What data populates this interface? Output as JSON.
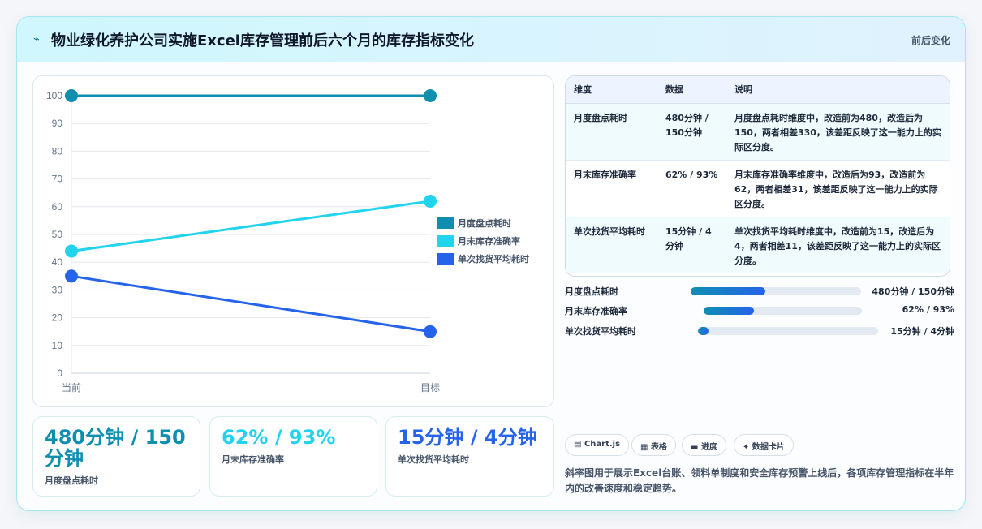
{
  "header": {
    "icon": "lightning-icon",
    "title": "物业绿化养护公司实施Excel库存管理前后六个月的库存指标变化",
    "subtitle": "前后变化"
  },
  "colors": {
    "series1": "#0e8fb0",
    "series2": "#22d3ee",
    "series3": "#2563eb"
  },
  "chart_data": {
    "type": "line",
    "categories": [
      "当前",
      "目标"
    ],
    "series": [
      {
        "name": "月度盘点耗时",
        "values": [
          100,
          100
        ]
      },
      {
        "name": "月末库存准确率",
        "values": [
          44,
          62
        ]
      },
      {
        "name": "单次找货平均耗时",
        "values": [
          35,
          15
        ]
      }
    ],
    "ylim": [
      0,
      100
    ],
    "yticks": [
      0,
      10,
      20,
      30,
      40,
      50,
      60,
      70,
      80,
      90,
      100
    ],
    "legend": "right",
    "grid": true
  },
  "kpis": [
    {
      "value": "480分钟 / 150分钟",
      "label": "月度盘点耗时"
    },
    {
      "value": "62% / 93%",
      "label": "月末库存准确率"
    },
    {
      "value": "15分钟 / 4分钟",
      "label": "单次找货平均耗时"
    }
  ],
  "table": {
    "headers": [
      "维度",
      "数据",
      "说明"
    ],
    "rows": [
      [
        "月度盘点耗时",
        "480分钟 / 150分钟",
        "月度盘点耗时维度中，改造前为480，改造后为150，两者相差330，该差距反映了这一能力上的实际区分度。"
      ],
      [
        "月末库存准确率",
        "62% / 93%",
        "月末库存准确率维度中，改造后为93，改造前为62，两者相差31，该差距反映了这一能力上的实际区分度。"
      ],
      [
        "单次找货平均耗时",
        "15分钟 / 4分钟",
        "单次找货平均耗时维度中，改造前为15，改造后为4，两者相差11，该差距反映了这一能力上的实际区分度。"
      ]
    ]
  },
  "progress": [
    {
      "label": "月度盘点耗时",
      "value": "480分钟 / 150分钟",
      "fraction": 0.44
    },
    {
      "label": "月末库存准确率",
      "value": "62% / 93%",
      "fraction": 0.32
    },
    {
      "label": "单次找货平均耗时",
      "value": "15分钟 / 4分钟",
      "fraction": 0.06
    }
  ],
  "tags": [
    {
      "icon": "chart-icon",
      "glyph": "▤",
      "label": "Chart.js"
    },
    {
      "icon": "table-icon",
      "glyph": "▦",
      "label": "表格"
    },
    {
      "icon": "progress-icon",
      "glyph": "▬",
      "label": "进度"
    },
    {
      "icon": "card-icon",
      "glyph": "✦",
      "label": "数据卡片"
    }
  ],
  "note": "斜率图用于展示Excel台账、领料单制度和安全库存预警上线后，各项库存管理指标在半年内的改善速度和稳定趋势。"
}
